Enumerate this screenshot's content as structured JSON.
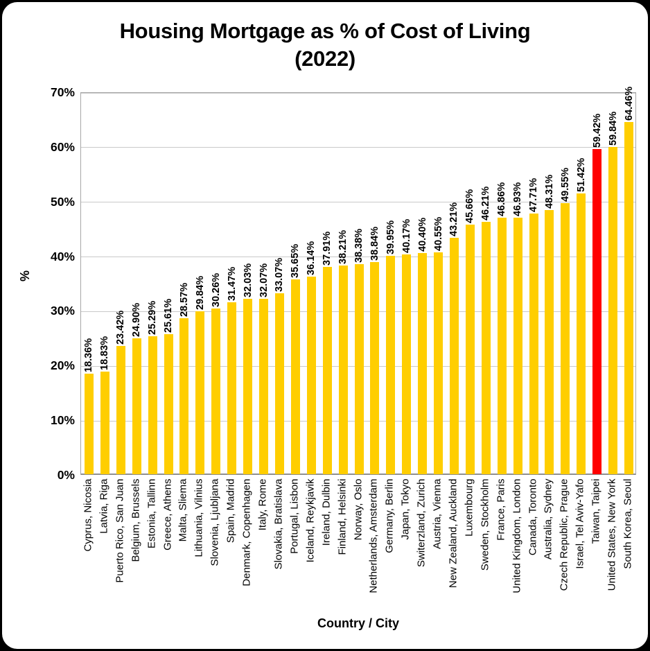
{
  "frame": {
    "background": "#FFFFFF",
    "border_color": "#000000"
  },
  "chart_data": {
    "type": "bar",
    "title": "Housing Mortgage as % of Cost of Living (2022)",
    "title_lines": [
      "Housing Mortgage as % of Cost of Living",
      "(2022)"
    ],
    "xlabel": "Country / City",
    "ylabel": "%",
    "ylim": [
      0,
      70
    ],
    "ytick_step": 10,
    "ytick_labels": [
      "0%",
      "10%",
      "20%",
      "30%",
      "40%",
      "50%",
      "60%",
      "70%"
    ],
    "grid": true,
    "legend": false,
    "bar_color": "#FFCE00",
    "highlight_color": "#FF0000",
    "highlight_index": 32,
    "gridline_color": "#C9C9C9",
    "categories": [
      "Cyprus, Nicosia",
      "Latvia, Riga",
      "Puerto Rico, San Juan",
      "Belgium, Brussels",
      "Estonia, Tallinn",
      "Greece, Athens",
      "Malta, Sliema",
      "Lithuania, Vilnius",
      "Slovenia, Ljubljana",
      "Spain, Madrid",
      "Denmark, Copenhagen",
      "Italy, Rome",
      "Slovakia, Bratislava",
      "Portugal, Lisbon",
      "Iceland, Reykjavik",
      "Ireland, Dulbin",
      "Finland, Helsinki",
      "Norway, Oslo",
      "Netherlands, Amsterdam",
      "Germany, Berlin",
      "Japan, Tokyo",
      "Switerzland, Zurich",
      "Austria, Vienna",
      "New Zealand, Auckland",
      "Luxembourg",
      "Sweden, Stockholm",
      "France, Paris",
      "United Kingdom, London",
      "Canada, Toronto",
      "Australia, Sydney",
      "Czech Republic, Prague",
      "Israel, Tel Aviv-Yafo",
      "Taiwan, Taipei",
      "United States, New York",
      "South Korea, Seoul"
    ],
    "values": [
      18.36,
      18.83,
      23.42,
      24.9,
      25.29,
      25.61,
      28.57,
      29.84,
      30.26,
      31.47,
      32.03,
      32.07,
      33.07,
      35.65,
      36.14,
      37.91,
      38.21,
      38.38,
      38.84,
      39.95,
      40.17,
      40.4,
      40.55,
      43.21,
      45.66,
      46.21,
      46.86,
      46.93,
      47.71,
      48.31,
      49.55,
      51.42,
      59.42,
      59.84,
      64.46
    ],
    "value_labels": [
      "18.36%",
      "18.83%",
      "23.42%",
      "24.90%",
      "25.29%",
      "25.61%",
      "28.57%",
      "29.84%",
      "30.26%",
      "31.47%",
      "32.03%",
      "32.07%",
      "33.07%",
      "35.65%",
      "36.14%",
      "37.91%",
      "38.21%",
      "38.38%",
      "38.84%",
      "39.95%",
      "40.17%",
      "40.40%",
      "40.55%",
      "43.21%",
      "45.66%",
      "46.21%",
      "46.86%",
      "46.93%",
      "47.71%",
      "48.31%",
      "49.55%",
      "51.42%",
      "59.42%",
      "59.84%",
      "64.46%"
    ]
  }
}
